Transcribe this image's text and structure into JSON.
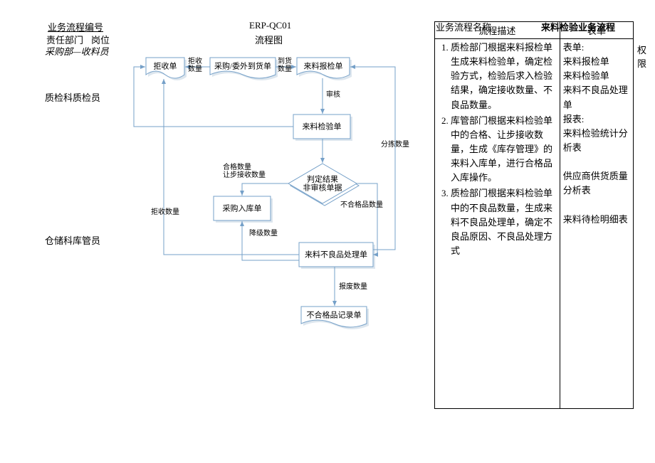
{
  "header": {
    "proc_id_label": "业务流程编号",
    "proc_id": "ERP-QC01",
    "dept_label": "责任部门",
    "post_label": "岗位",
    "flow_label": "流程图",
    "proc_name_label": "业务流程名称",
    "proc_name": "来料检验业务流程",
    "perm_label": "权限"
  },
  "lanes": {
    "l1_dept": "采购部",
    "l1_post": "收料员",
    "l2_dept": "质检科质检员",
    "l3_dept": "仓储科库管员"
  },
  "panel": {
    "desc_header": "流程描述",
    "form_header": "表单",
    "desc": [
      "质检部门根据来料报检单生成来料检验单，确定检验方式，检验后求入检验结果，确定接收数量、不良品数量。",
      "库管部门根据来料检验单中的合格、让步接收数量，生成《库存管理》的来料入库单，进行合格品入库操作。",
      "质检部门根据来料检验单中的不良品数量，生成来料不良品处理单，确定不良品原因、不良品处理方式"
    ],
    "forms": "表单:\n来料报检单\n来料检验单\n来料不良品处理单\n报表:\n来料检验统计分析表\n\n供应商供货质量分析表\n\n来料待检明细表"
  },
  "flow": {
    "colors": {
      "stroke": "#75a0c8",
      "shadow": "#dde6ee",
      "bg": "#ffffff"
    },
    "nodes": {
      "n_reject": "拒收单",
      "n_arrive": "采购/委外到货单",
      "n_report": "来料报检单",
      "n_inspect": "来料检验单",
      "n_judge1": "判定结果",
      "n_judge2": "非审核单据",
      "n_instock": "采购入库单",
      "n_defect": "来料不良品处理单",
      "n_record": "不合格品记录单"
    },
    "edges": {
      "e_reject": "拒收\n数量",
      "e_arrive": "到货\n数量",
      "e_audit": "审核",
      "e_sort": "分拣数量",
      "e_ok": "合格数量\n让步接收数量",
      "e_ng": "不合格品数量",
      "e_reject2": "拒收数量",
      "e_down": "降级数量",
      "e_scrap": "报废数量"
    }
  }
}
